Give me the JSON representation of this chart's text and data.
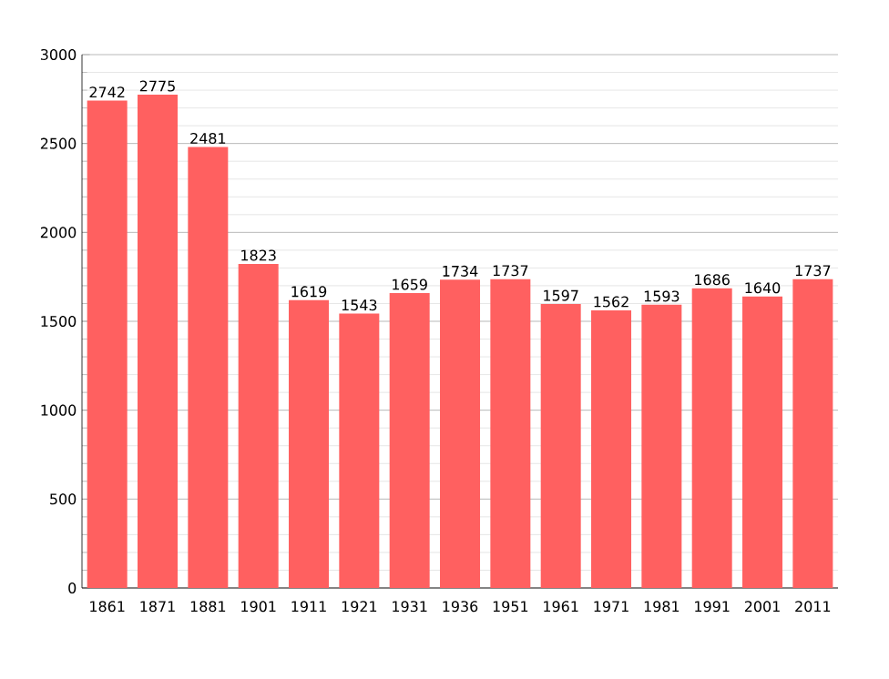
{
  "chart_data": {
    "type": "bar",
    "categories": [
      "1861",
      "1871",
      "1881",
      "1901",
      "1911",
      "1921",
      "1931",
      "1936",
      "1951",
      "1961",
      "1971",
      "1981",
      "1991",
      "2001",
      "2011"
    ],
    "values": [
      2742,
      2775,
      2481,
      1823,
      1619,
      1543,
      1659,
      1734,
      1737,
      1597,
      1562,
      1593,
      1686,
      1640,
      1737
    ],
    "color": "#ff6060",
    "ylim": [
      0,
      3000
    ],
    "yticks": [
      0,
      500,
      1000,
      1500,
      2000,
      2500,
      3000
    ],
    "grid": "y",
    "data_labels": true
  }
}
